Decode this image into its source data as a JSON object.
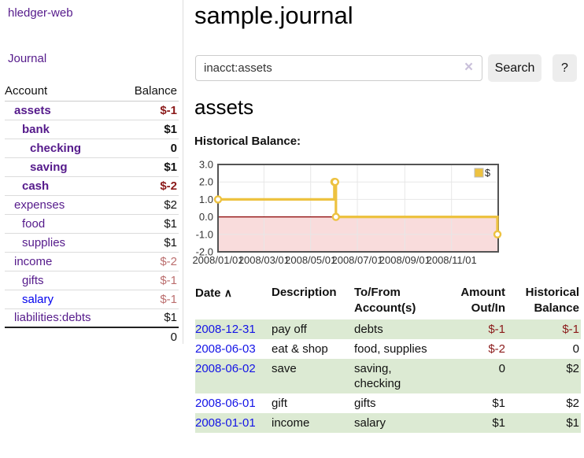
{
  "colors": {
    "link_purple": "#551a8b",
    "link_blue": "#0000ee",
    "negative_strong": "#8b1a1a",
    "negative_soft": "#bb6e6e",
    "row_green": "#dcead3",
    "series_yellow": "#edc240",
    "chart_negative_region": "#f9dcdc",
    "chart_zero_line": "#8b0000",
    "chart_border": "#545454",
    "chart_grid": "#e7e7e7"
  },
  "sidebar": {
    "brand": "hledger-web",
    "nav_journal": "Journal",
    "accounts": {
      "header_account": "Account",
      "header_balance": "Balance",
      "rows": [
        {
          "name": "assets",
          "balance": "$-1"
        },
        {
          "name": "bank",
          "balance": "$1"
        },
        {
          "name": "checking",
          "balance": "0"
        },
        {
          "name": "saving",
          "balance": "$1"
        },
        {
          "name": "cash",
          "balance": "$-2"
        },
        {
          "name": "expenses",
          "balance": "$2"
        },
        {
          "name": "food",
          "balance": "$1"
        },
        {
          "name": "supplies",
          "balance": "$1"
        },
        {
          "name": "income",
          "balance": "$-2"
        },
        {
          "name": "gifts",
          "balance": "$-1"
        },
        {
          "name": "salary",
          "balance": "$-1"
        },
        {
          "name": "liabilities:debts",
          "balance": "$1"
        }
      ],
      "total": "0"
    }
  },
  "main": {
    "title": "sample.journal",
    "search": {
      "value": "inacct:assets",
      "clear_icon": "×",
      "search_button": "Search",
      "help_button": "?"
    },
    "heading": "assets",
    "chart_title": "Historical Balance:"
  },
  "chart_data": {
    "type": "line",
    "subtype": "step-with-markers",
    "title": "Historical Balance",
    "legend": {
      "entries": [
        "$"
      ],
      "position": "top-right"
    },
    "series": [
      {
        "name": "$",
        "color": "#edc240",
        "points": [
          [
            "2008-01-01",
            1
          ],
          [
            "2008-06-01",
            2
          ],
          [
            "2008-06-02",
            2
          ],
          [
            "2008-06-03",
            0
          ],
          [
            "2008-12-31",
            -1
          ]
        ]
      }
    ],
    "xlim": [
      "2008-01-01",
      "2009-01-01"
    ],
    "ylim": [
      -2,
      3
    ],
    "y_tick_labels": [
      "3.0",
      "2.0",
      "1.0",
      "0.0",
      "-1.0",
      "-2.0"
    ],
    "y_ticks": [
      3,
      2,
      1,
      0,
      -1,
      -2
    ],
    "x_ticks": [
      "2008-01-01",
      "2008-03-01",
      "2008-05-01",
      "2008-07-01",
      "2008-09-01",
      "2008-11-01"
    ],
    "x_tick_labels": [
      "2008/01/01",
      "2008/03/01",
      "2008/05/01",
      "2008/07/01",
      "2008/09/01",
      "2008/11/01"
    ],
    "grid": true,
    "negative_region": {
      "from": 0,
      "to": -2
    },
    "zero_line": 0
  },
  "register": {
    "headers": {
      "date": "Date",
      "sort_icon": "∧",
      "description": "Description",
      "accounts": "To/From\nAccount(s)",
      "amount": "Amount\nOut/In",
      "balance": "Historical\nBalance"
    },
    "rows": [
      {
        "date": "2008-12-31",
        "description": "pay off",
        "accounts": "debts",
        "amount": "$-1",
        "balance": "$-1"
      },
      {
        "date": "2008-06-03",
        "description": "eat & shop",
        "accounts": "food, supplies",
        "amount": "$-2",
        "balance": "0"
      },
      {
        "date": "2008-06-02",
        "description": "save",
        "accounts": "saving,\nchecking",
        "amount": "0",
        "balance": "$2"
      },
      {
        "date": "2008-06-01",
        "description": "gift",
        "accounts": "gifts",
        "amount": "$1",
        "balance": "$2"
      },
      {
        "date": "2008-01-01",
        "description": "income",
        "accounts": "salary",
        "amount": "$1",
        "balance": "$1"
      }
    ]
  }
}
